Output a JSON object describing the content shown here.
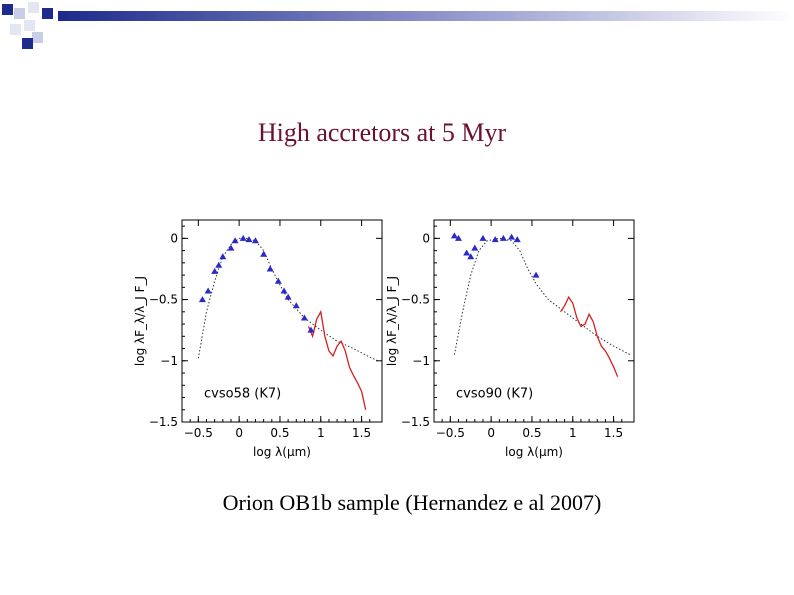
{
  "slide": {
    "title": "High accretors at 5 Myr",
    "caption": "Orion OB1b sample (Hernandez e al 2007)"
  },
  "colors": {
    "title": "#6b1030",
    "points": "#2a2ac8",
    "spectrum": "#d42020",
    "deco": "#1e2a8c"
  },
  "chart_data": [
    {
      "type": "scatter",
      "label": "cvso58 (K7)",
      "xlabel": "log λ(μm)",
      "ylabel": "log λF_λ/λ_J F_J",
      "xlim": [
        -0.7,
        1.75
      ],
      "ylim": [
        -1.5,
        0.15
      ],
      "xticks": [
        "−0.5",
        "0",
        "0.5",
        "1",
        "1.5"
      ],
      "yticks": [
        "0",
        "−0.5",
        "−1",
        "−1.5"
      ],
      "points": [
        [
          -0.45,
          -0.5
        ],
        [
          -0.38,
          -0.43
        ],
        [
          -0.3,
          -0.27
        ],
        [
          -0.25,
          -0.22
        ],
        [
          -0.2,
          -0.15
        ],
        [
          -0.1,
          -0.08
        ],
        [
          -0.05,
          -0.02
        ],
        [
          0.05,
          0.0
        ],
        [
          0.12,
          -0.01
        ],
        [
          0.2,
          -0.02
        ],
        [
          0.3,
          -0.13
        ],
        [
          0.38,
          -0.25
        ],
        [
          0.48,
          -0.35
        ],
        [
          0.55,
          -0.43
        ],
        [
          0.6,
          -0.48
        ],
        [
          0.7,
          -0.55
        ],
        [
          0.8,
          -0.65
        ],
        [
          0.88,
          -0.75
        ]
      ],
      "model": [
        [
          -0.5,
          -0.98
        ],
        [
          -0.4,
          -0.6
        ],
        [
          -0.3,
          -0.35
        ],
        [
          -0.2,
          -0.15
        ],
        [
          -0.1,
          -0.05
        ],
        [
          0.0,
          0.0
        ],
        [
          0.1,
          0.0
        ],
        [
          0.2,
          -0.02
        ],
        [
          0.3,
          -0.1
        ],
        [
          0.4,
          -0.25
        ],
        [
          0.5,
          -0.38
        ],
        [
          0.6,
          -0.5
        ],
        [
          0.8,
          -0.65
        ],
        [
          1.0,
          -0.75
        ],
        [
          1.2,
          -0.84
        ],
        [
          1.4,
          -0.9
        ],
        [
          1.6,
          -0.97
        ],
        [
          1.7,
          -1.0
        ]
      ],
      "spectrum": [
        [
          0.85,
          -0.72
        ],
        [
          0.9,
          -0.8
        ],
        [
          0.95,
          -0.66
        ],
        [
          1.0,
          -0.6
        ],
        [
          1.05,
          -0.8
        ],
        [
          1.1,
          -0.92
        ],
        [
          1.15,
          -0.96
        ],
        [
          1.2,
          -0.88
        ],
        [
          1.25,
          -0.84
        ],
        [
          1.3,
          -0.92
        ],
        [
          1.35,
          -1.05
        ],
        [
          1.4,
          -1.12
        ],
        [
          1.45,
          -1.18
        ],
        [
          1.5,
          -1.25
        ],
        [
          1.55,
          -1.4
        ]
      ]
    },
    {
      "type": "scatter",
      "label": "cvso90 (K7)",
      "xlabel": "log λ(μm)",
      "ylabel": "log λF_λ/λ_J F_J",
      "xlim": [
        -0.7,
        1.75
      ],
      "ylim": [
        -1.5,
        0.15
      ],
      "xticks": [
        "−0.5",
        "0",
        "0.5",
        "1",
        "1.5"
      ],
      "yticks": [
        "0",
        "−0.5",
        "−1",
        "−1.5"
      ],
      "points": [
        [
          -0.45,
          0.02
        ],
        [
          -0.4,
          0.0
        ],
        [
          -0.3,
          -0.12
        ],
        [
          -0.25,
          -0.15
        ],
        [
          -0.2,
          -0.08
        ],
        [
          -0.1,
          0.0
        ],
        [
          0.05,
          -0.01
        ],
        [
          0.15,
          0.0
        ],
        [
          0.25,
          0.01
        ],
        [
          0.32,
          -0.01
        ],
        [
          0.55,
          -0.3
        ]
      ],
      "model": [
        [
          -0.45,
          -0.95
        ],
        [
          -0.35,
          -0.6
        ],
        [
          -0.25,
          -0.3
        ],
        [
          -0.15,
          -0.1
        ],
        [
          -0.05,
          -0.02
        ],
        [
          0.1,
          0.0
        ],
        [
          0.25,
          -0.02
        ],
        [
          0.35,
          -0.1
        ],
        [
          0.45,
          -0.25
        ],
        [
          0.55,
          -0.37
        ],
        [
          0.7,
          -0.5
        ],
        [
          0.9,
          -0.6
        ],
        [
          1.1,
          -0.7
        ],
        [
          1.3,
          -0.8
        ],
        [
          1.5,
          -0.88
        ],
        [
          1.7,
          -0.95
        ]
      ],
      "spectrum": [
        [
          0.85,
          -0.6
        ],
        [
          0.9,
          -0.55
        ],
        [
          0.95,
          -0.48
        ],
        [
          1.0,
          -0.53
        ],
        [
          1.05,
          -0.65
        ],
        [
          1.1,
          -0.72
        ],
        [
          1.15,
          -0.7
        ],
        [
          1.2,
          -0.62
        ],
        [
          1.25,
          -0.68
        ],
        [
          1.3,
          -0.8
        ],
        [
          1.35,
          -0.88
        ],
        [
          1.4,
          -0.92
        ],
        [
          1.45,
          -0.98
        ],
        [
          1.5,
          -1.05
        ],
        [
          1.55,
          -1.13
        ]
      ]
    }
  ]
}
